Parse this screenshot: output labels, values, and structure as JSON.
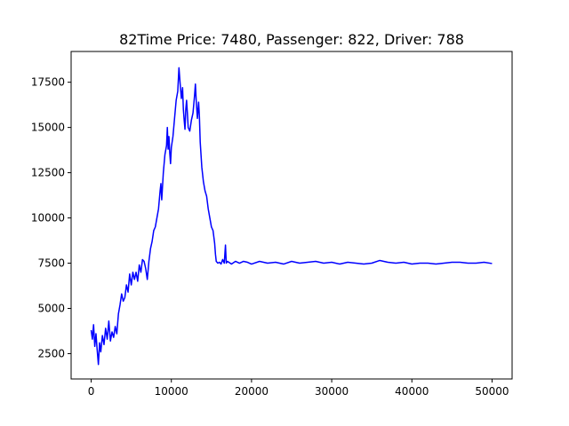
{
  "chart_data": {
    "type": "line",
    "title": "82Time Price: 7480, Passenger: 822, Driver: 788",
    "xlabel": "",
    "ylabel": "",
    "xlim": [
      -2500,
      52500
    ],
    "ylim": [
      1100,
      19200
    ],
    "xticks": [
      0,
      10000,
      20000,
      30000,
      40000,
      50000
    ],
    "xtick_labels": [
      "0",
      "10000",
      "20000",
      "30000",
      "40000",
      "50000"
    ],
    "yticks": [
      2500,
      5000,
      7500,
      10000,
      12500,
      15000,
      17500
    ],
    "ytick_labels": [
      "2500",
      "5000",
      "7500",
      "10000",
      "12500",
      "15000",
      "17500"
    ],
    "grid": false,
    "legend": "none",
    "series": [
      {
        "color": "#0000ff",
        "points": [
          [
            0,
            3800
          ],
          [
            150,
            3300
          ],
          [
            300,
            4100
          ],
          [
            450,
            2900
          ],
          [
            600,
            3600
          ],
          [
            750,
            2700
          ],
          [
            900,
            1900
          ],
          [
            1050,
            3100
          ],
          [
            1200,
            2600
          ],
          [
            1400,
            3500
          ],
          [
            1600,
            3000
          ],
          [
            1800,
            3900
          ],
          [
            2000,
            3300
          ],
          [
            2200,
            4300
          ],
          [
            2400,
            3200
          ],
          [
            2600,
            3700
          ],
          [
            2800,
            3400
          ],
          [
            3000,
            4000
          ],
          [
            3200,
            3600
          ],
          [
            3400,
            4700
          ],
          [
            3600,
            5200
          ],
          [
            3800,
            5800
          ],
          [
            4000,
            5400
          ],
          [
            4200,
            5600
          ],
          [
            4400,
            6300
          ],
          [
            4600,
            5900
          ],
          [
            4800,
            6900
          ],
          [
            5000,
            6300
          ],
          [
            5200,
            7000
          ],
          [
            5400,
            6600
          ],
          [
            5600,
            7000
          ],
          [
            5800,
            6500
          ],
          [
            6000,
            7400
          ],
          [
            6200,
            7000
          ],
          [
            6400,
            7700
          ],
          [
            6600,
            7600
          ],
          [
            6800,
            7200
          ],
          [
            7000,
            6600
          ],
          [
            7100,
            7100
          ],
          [
            7200,
            7600
          ],
          [
            7400,
            8300
          ],
          [
            7600,
            8700
          ],
          [
            7800,
            9300
          ],
          [
            8000,
            9500
          ],
          [
            8200,
            10000
          ],
          [
            8400,
            10500
          ],
          [
            8600,
            11500
          ],
          [
            8700,
            11900
          ],
          [
            8800,
            11000
          ],
          [
            9000,
            12500
          ],
          [
            9200,
            13500
          ],
          [
            9400,
            14000
          ],
          [
            9500,
            15000
          ],
          [
            9600,
            13800
          ],
          [
            9700,
            14500
          ],
          [
            9800,
            13600
          ],
          [
            9900,
            13000
          ],
          [
            10000,
            13900
          ],
          [
            10200,
            14500
          ],
          [
            10400,
            15500
          ],
          [
            10600,
            16500
          ],
          [
            10800,
            17000
          ],
          [
            10950,
            18300
          ],
          [
            11100,
            17400
          ],
          [
            11250,
            16600
          ],
          [
            11400,
            17200
          ],
          [
            11500,
            16000
          ],
          [
            11600,
            15400
          ],
          [
            11700,
            14900
          ],
          [
            11800,
            16000
          ],
          [
            11900,
            16500
          ],
          [
            12000,
            15800
          ],
          [
            12100,
            15000
          ],
          [
            12300,
            14800
          ],
          [
            12500,
            15400
          ],
          [
            12700,
            15800
          ],
          [
            12900,
            16800
          ],
          [
            13000,
            17400
          ],
          [
            13100,
            16500
          ],
          [
            13250,
            15500
          ],
          [
            13400,
            16400
          ],
          [
            13500,
            15600
          ],
          [
            13600,
            14200
          ],
          [
            13700,
            13500
          ],
          [
            13800,
            12800
          ],
          [
            14000,
            12000
          ],
          [
            14200,
            11500
          ],
          [
            14400,
            11200
          ],
          [
            14600,
            10500
          ],
          [
            14800,
            10000
          ],
          [
            15000,
            9500
          ],
          [
            15200,
            9300
          ],
          [
            15400,
            8600
          ],
          [
            15500,
            8000
          ],
          [
            15600,
            7600
          ],
          [
            15800,
            7500
          ],
          [
            16000,
            7550
          ],
          [
            16200,
            7450
          ],
          [
            16400,
            7700
          ],
          [
            16600,
            7500
          ],
          [
            16750,
            8500
          ],
          [
            16850,
            7500
          ],
          [
            17000,
            7600
          ],
          [
            17500,
            7450
          ],
          [
            18000,
            7600
          ],
          [
            18500,
            7500
          ],
          [
            19000,
            7600
          ],
          [
            19500,
            7550
          ],
          [
            20000,
            7450
          ],
          [
            21000,
            7600
          ],
          [
            22000,
            7500
          ],
          [
            23000,
            7550
          ],
          [
            24000,
            7450
          ],
          [
            25000,
            7600
          ],
          [
            26000,
            7500
          ],
          [
            27000,
            7550
          ],
          [
            28000,
            7600
          ],
          [
            29000,
            7500
          ],
          [
            30000,
            7550
          ],
          [
            31000,
            7450
          ],
          [
            32000,
            7550
          ],
          [
            33000,
            7500
          ],
          [
            34000,
            7450
          ],
          [
            35000,
            7500
          ],
          [
            36000,
            7650
          ],
          [
            37000,
            7550
          ],
          [
            38000,
            7500
          ],
          [
            39000,
            7550
          ],
          [
            40000,
            7450
          ],
          [
            41000,
            7500
          ],
          [
            42000,
            7500
          ],
          [
            43000,
            7450
          ],
          [
            44000,
            7500
          ],
          [
            45000,
            7550
          ],
          [
            46000,
            7550
          ],
          [
            47000,
            7500
          ],
          [
            48000,
            7500
          ],
          [
            49000,
            7550
          ],
          [
            50000,
            7480
          ]
        ]
      }
    ]
  }
}
